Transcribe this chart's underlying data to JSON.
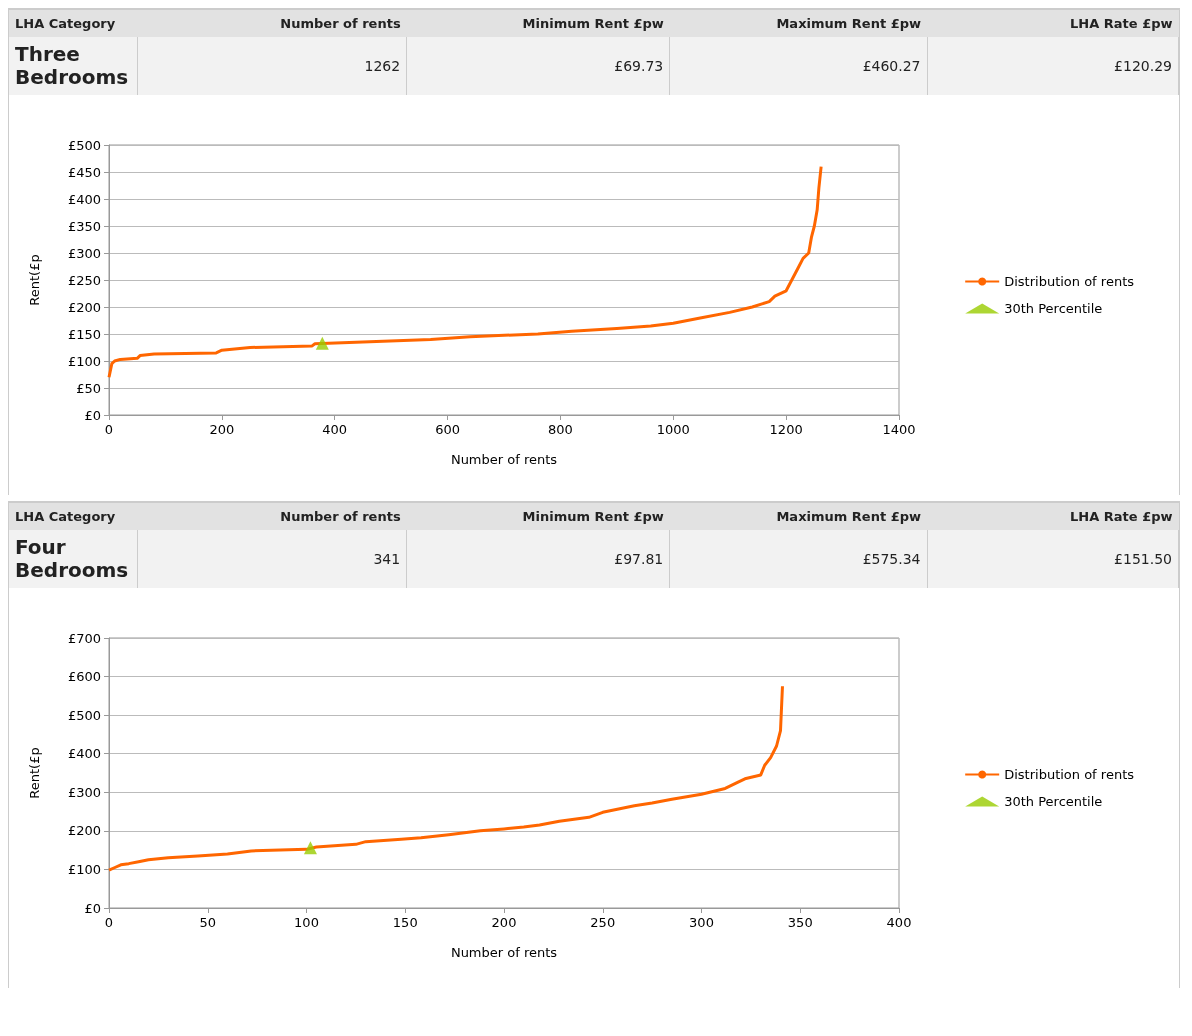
{
  "chart_data": [
    {
      "type": "other",
      "categories": [
        "LHA Category",
        "Number of rents",
        "Minimum Rent £pw",
        "Maximum Rent £pw",
        "LHA Rate £pw"
      ],
      "annotations": [
        "Three Bedrooms",
        "1262",
        "£69.73",
        "£460.27",
        "£120.29"
      ]
    },
    {
      "type": "line",
      "xlabel": "Number of rents",
      "ylabel": "Rent(£p",
      "xlim": [
        0,
        1400
      ],
      "xticks": [
        0,
        200,
        400,
        600,
        800,
        1000,
        1200,
        1400
      ],
      "ylim": [
        0,
        500
      ],
      "yticks": [
        {
          "value": 0,
          "label": "£0"
        },
        {
          "value": 50,
          "label": "£50"
        },
        {
          "value": 100,
          "label": "£100"
        },
        {
          "value": 150,
          "label": "£150"
        },
        {
          "value": 200,
          "label": "£200"
        },
        {
          "value": 250,
          "label": "£250"
        },
        {
          "value": 300,
          "label": "£300"
        },
        {
          "value": 350,
          "label": "£350"
        },
        {
          "value": 400,
          "label": "£400"
        },
        {
          "value": 450,
          "label": "£450"
        },
        {
          "value": 500,
          "label": "£500"
        }
      ],
      "grid": "y",
      "legend": "right",
      "series": [
        {
          "name": "Distribution of rents",
          "type": "line",
          "color": "#ff6600",
          "marker": "none",
          "x": [
            0,
            5,
            10,
            20,
            50,
            55,
            80,
            190,
            200,
            250,
            360,
            365,
            450,
            570,
            640,
            760,
            820,
            900,
            960,
            1000,
            1050,
            1100,
            1140,
            1170,
            1180,
            1200,
            1210,
            1220,
            1230,
            1240,
            1245,
            1250,
            1255,
            1258,
            1262
          ],
          "values": [
            70,
            95,
            100,
            103,
            105,
            110,
            113,
            115,
            120,
            125,
            128,
            132,
            135,
            140,
            145,
            150,
            155,
            160,
            165,
            170,
            180,
            190,
            200,
            210,
            220,
            230,
            250,
            270,
            290,
            300,
            330,
            350,
            380,
            420,
            460
          ]
        },
        {
          "name": "30th Percentile",
          "type": "scatter",
          "color": "#99cc00",
          "marker": "triangle",
          "x": [
            378
          ],
          "values": [
            133
          ]
        }
      ]
    },
    {
      "type": "other",
      "categories": [
        "LHA Category",
        "Number of rents",
        "Minimum Rent £pw",
        "Maximum Rent £pw",
        "LHA Rate £pw"
      ],
      "annotations": [
        "Four Bedrooms",
        "341",
        "£97.81",
        "£575.34",
        "£151.50"
      ]
    },
    {
      "type": "line",
      "xlabel": "Number of rents",
      "ylabel": "Rent(£p",
      "xlim": [
        0,
        400
      ],
      "xticks": [
        0,
        50,
        100,
        150,
        200,
        250,
        300,
        350,
        400
      ],
      "ylim": [
        0,
        700
      ],
      "yticks": [
        {
          "value": 0,
          "label": "£0"
        },
        {
          "value": 100,
          "label": "£100"
        },
        {
          "value": 200,
          "label": "£200"
        },
        {
          "value": 300,
          "label": "£300"
        },
        {
          "value": 400,
          "label": "£400"
        },
        {
          "value": 500,
          "label": "£500"
        },
        {
          "value": 600,
          "label": "£600"
        },
        {
          "value": 700,
          "label": "£700"
        }
      ],
      "grid": "y",
      "legend": "right",
      "series": [
        {
          "name": "Distribution of rents",
          "type": "line",
          "color": "#ff6600",
          "marker": "none",
          "x": [
            0,
            3,
            6,
            10,
            15,
            20,
            30,
            45,
            60,
            72,
            100,
            105,
            125,
            130,
            148,
            158,
            172,
            188,
            200,
            210,
            218,
            228,
            243,
            250,
            266,
            275,
            285,
            300,
            312,
            318,
            322,
            330,
            332,
            335,
            338,
            340,
            341
          ],
          "values": [
            98,
            105,
            112,
            115,
            120,
            125,
            130,
            135,
            140,
            148,
            152,
            158,
            165,
            172,
            178,
            182,
            190,
            200,
            205,
            210,
            215,
            225,
            235,
            248,
            265,
            272,
            282,
            295,
            310,
            325,
            335,
            345,
            370,
            390,
            420,
            460,
            575
          ]
        },
        {
          "name": "30th Percentile",
          "type": "scatter",
          "color": "#99cc00",
          "marker": "triangle",
          "x": [
            102
          ],
          "values": [
            156
          ]
        }
      ]
    }
  ]
}
